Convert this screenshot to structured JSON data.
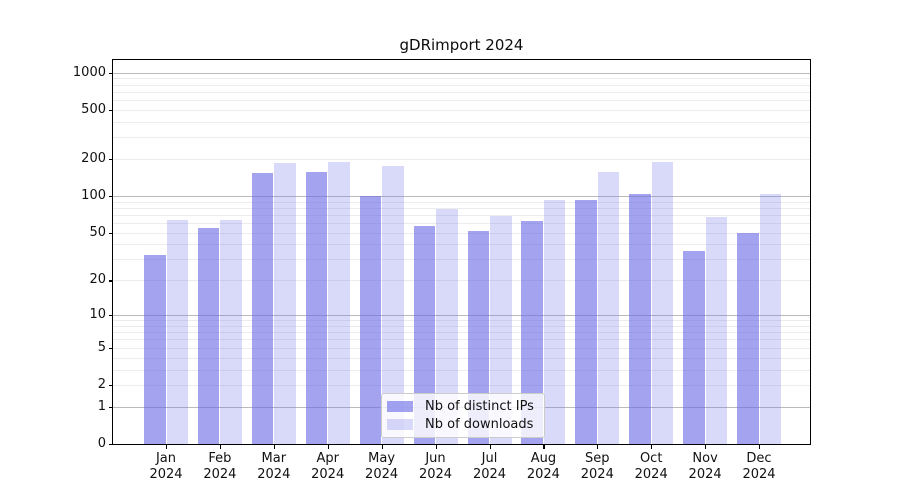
{
  "chart_data": {
    "type": "bar",
    "title": "gDRimport 2024",
    "categories": [
      "Jan",
      "Feb",
      "Mar",
      "Apr",
      "May",
      "Jun",
      "Jul",
      "Aug",
      "Sep",
      "Oct",
      "Nov",
      "Dec"
    ],
    "year_label": "2024",
    "series": [
      {
        "name": "Nb of distinct IPs",
        "color": "rgba(102,102,230,0.6)",
        "values": [
          33,
          55,
          155,
          158,
          100,
          57,
          52,
          62,
          92,
          104,
          35,
          50
        ]
      },
      {
        "name": "Nb of downloads",
        "color": "rgba(102,102,230,0.25)",
        "values": [
          64,
          64,
          186,
          190,
          174,
          78,
          69,
          92,
          158,
          190,
          67,
          103
        ]
      }
    ],
    "yticks": [
      0,
      1,
      2,
      5,
      10,
      20,
      50,
      100,
      200,
      500,
      1000
    ],
    "scale": "log1p",
    "ylim": [
      0,
      1260
    ],
    "grid": true,
    "legend_position": "lower center",
    "colors": {
      "axis": "#000000",
      "major_grid": "#bbbbbb",
      "minor_grid": "#ececec",
      "background": "#ffffff"
    }
  }
}
